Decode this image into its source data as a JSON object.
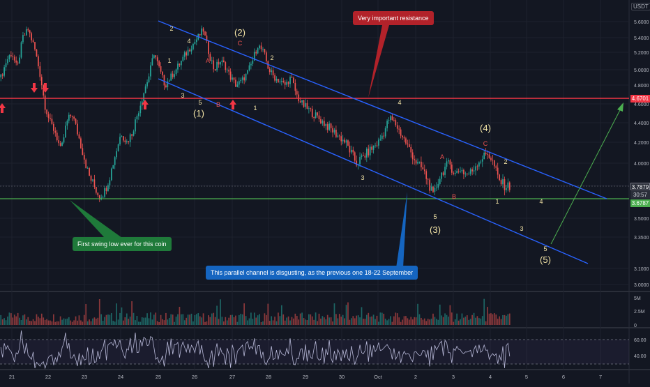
{
  "chart_data": {
    "type": "candlestick",
    "symbol_unit": "USDT",
    "x_ticks": [
      "21",
      "22",
      "23",
      "24",
      "25",
      "26",
      "27",
      "28",
      "29",
      "30",
      "Oct",
      "2",
      "3",
      "4",
      "5",
      "6",
      "7"
    ],
    "y_ticks": [
      "5.6000",
      "5.4000",
      "5.2000",
      "5.0000",
      "4.8000",
      "4.6000",
      "4.4000",
      "4.2000",
      "4.0000",
      "3.8000",
      "3.5000",
      "3.3500",
      "3.1000",
      "3.0000"
    ],
    "volume_ticks": [
      "5M",
      "2.5M",
      "0"
    ],
    "rsi_ticks": [
      "60.00",
      "40.00"
    ],
    "price_tags": {
      "resistance": "4.6701",
      "last_price": "3.7879",
      "countdown": "30:57",
      "support": "3.6787"
    },
    "horizontal_levels": [
      {
        "price": 4.6701,
        "color": "#f23645"
      },
      {
        "price": 3.6787,
        "color": "#4caf50"
      }
    ],
    "close_prices": [
      4.9,
      5.1,
      5.2,
      5.0,
      5.4,
      5.5,
      5.3,
      5.0,
      4.6,
      4.4,
      4.3,
      4.1,
      4.4,
      4.5,
      4.3,
      4.1,
      3.9,
      3.8,
      3.7,
      3.75,
      3.9,
      4.1,
      4.3,
      4.2,
      4.3,
      4.5,
      4.7,
      4.9,
      5.2,
      5.0,
      4.8,
      4.9,
      5.0,
      5.1,
      5.2,
      5.3,
      5.4,
      5.5,
      5.2,
      5.0,
      5.1,
      5.05,
      4.9,
      4.8,
      4.85,
      4.95,
      5.1,
      5.3,
      5.2,
      5.0,
      4.9,
      4.85,
      4.8,
      4.9,
      4.7,
      4.6,
      4.55,
      4.5,
      4.45,
      4.4,
      4.35,
      4.3,
      4.25,
      4.2,
      4.1,
      4.0,
      4.05,
      4.1,
      4.15,
      4.2,
      4.3,
      4.45,
      4.4,
      4.3,
      4.2,
      4.1,
      4.0,
      3.95,
      3.85,
      3.7,
      3.85,
      3.95,
      4.0,
      3.9,
      3.95,
      3.9,
      3.92,
      4.0,
      4.05,
      4.1,
      4.0,
      3.85,
      3.8,
      3.79
    ],
    "annotations": {
      "callouts": [
        "Very important resistance",
        "First swing low ever for this coin",
        "This parallel channel is disgusting, as the previous one 18-22 September"
      ],
      "wave_labels_white": [
        "2",
        "4",
        "1",
        "3",
        "5",
        "A",
        "B",
        "C",
        "2",
        "1",
        "4",
        "3",
        "5",
        "A",
        "B",
        "C",
        "2",
        "1",
        "4",
        "3",
        "5"
      ],
      "wave_labels_major": [
        "(1)",
        "(2)",
        "(3)",
        "(4)",
        "(5)"
      ]
    }
  }
}
